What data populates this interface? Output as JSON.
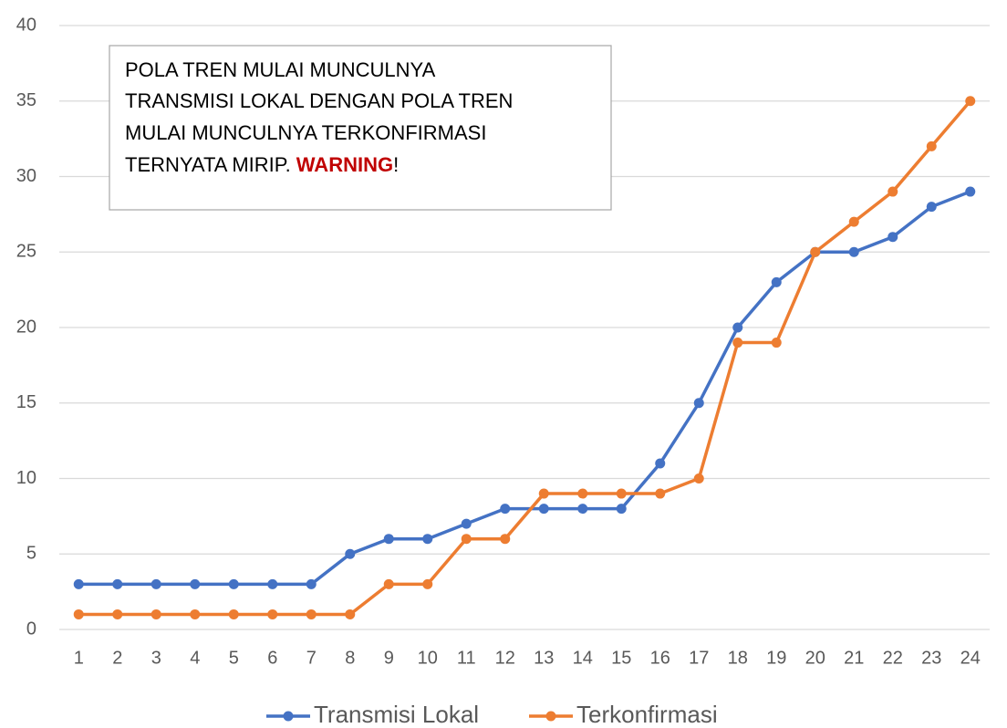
{
  "chart_data": {
    "type": "line",
    "categories": [
      "1",
      "2",
      "3",
      "4",
      "5",
      "6",
      "7",
      "8",
      "9",
      "10",
      "11",
      "12",
      "13",
      "14",
      "15",
      "16",
      "17",
      "18",
      "19",
      "20",
      "21",
      "22",
      "23",
      "24"
    ],
    "series": [
      {
        "name": "Transmisi Lokal",
        "color": "#4472c4",
        "values": [
          3,
          3,
          3,
          3,
          3,
          3,
          3,
          5,
          6,
          6,
          7,
          8,
          8,
          8,
          8,
          11,
          15,
          20,
          23,
          25,
          25,
          26,
          28,
          29
        ]
      },
      {
        "name": "Terkonfirmasi",
        "color": "#ed7d31",
        "values": [
          1,
          1,
          1,
          1,
          1,
          1,
          1,
          1,
          3,
          3,
          6,
          6,
          9,
          9,
          9,
          9,
          10,
          19,
          19,
          25,
          27,
          29,
          32,
          35
        ]
      }
    ],
    "ylim": [
      0,
      40
    ],
    "yticks": [
      0,
      5,
      10,
      15,
      20,
      25,
      30,
      35,
      40
    ],
    "grid": true,
    "legend": "bottom",
    "annotation": {
      "lines": [
        "POLA TREN MULAI MUNCULNYA",
        "TRANSMISI LOKAL DENGAN POLA TREN",
        "MULAI MUNCULNYA TERKONFIRMASI"
      ],
      "last_line": "TERNYATA MIRIP.",
      "highlight": "WARNING",
      "end": "!"
    }
  }
}
